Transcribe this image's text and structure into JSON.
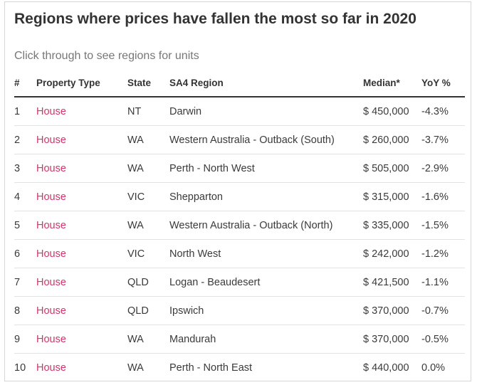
{
  "header": {
    "title": "Regions where prices have fallen the most so far in 2020",
    "subtitle": "Click through to see regions for units"
  },
  "chart_data": {
    "type": "table",
    "columns": [
      "#",
      "Property Type",
      "State",
      "SA4 Region",
      "Median*",
      "YoY %"
    ],
    "rows": [
      [
        "1",
        "House",
        "NT",
        "Darwin",
        "$ 450,000",
        "-4.3%"
      ],
      [
        "2",
        "House",
        "WA",
        "Western Australia - Outback (South)",
        "$ 260,000",
        "-3.7%"
      ],
      [
        "3",
        "House",
        "WA",
        "Perth - North West",
        "$ 505,000",
        "-2.9%"
      ],
      [
        "4",
        "House",
        "VIC",
        "Shepparton",
        "$ 315,000",
        "-1.6%"
      ],
      [
        "5",
        "House",
        "WA",
        "Western Australia - Outback (North)",
        "$ 335,000",
        "-1.5%"
      ],
      [
        "6",
        "House",
        "VIC",
        "North West",
        "$ 242,000",
        "-1.2%"
      ],
      [
        "7",
        "House",
        "QLD",
        "Logan - Beaudesert",
        "$ 421,500",
        "-1.1%"
      ],
      [
        "8",
        "House",
        "QLD",
        "Ipswich",
        "$ 370,000",
        "-0.7%"
      ],
      [
        "9",
        "House",
        "WA",
        "Mandurah",
        "$ 370,000",
        "-0.5%"
      ],
      [
        "10",
        "House",
        "WA",
        "Perth - North East",
        "$ 440,000",
        "0.0%"
      ]
    ]
  },
  "colors": {
    "link": "#d3326b",
    "header_rule": "#333333",
    "row_divider": "#e2e2e2"
  }
}
